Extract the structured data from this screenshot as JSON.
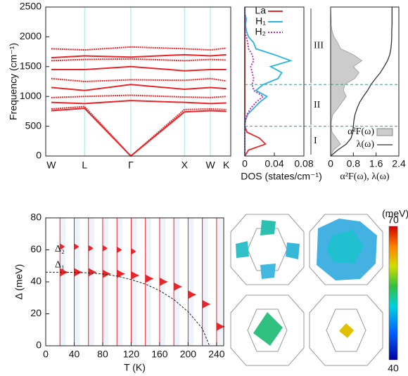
{
  "chart_data": [
    {
      "type": "band",
      "ylabel": "Frequency (cm⁻¹)",
      "categories": [
        "W",
        "L",
        "Γ",
        "X",
        "W",
        "K"
      ],
      "ylim": [
        0,
        2500
      ],
      "yticks": [
        0,
        500,
        1000,
        1500,
        2000,
        2500
      ],
      "color": "#e8262a",
      "bands": [
        [
          760,
          800,
          0,
          740,
          760,
          750
        ],
        [
          790,
          830,
          0,
          780,
          790,
          780
        ],
        [
          900,
          880,
          930,
          900,
          880,
          890
        ],
        [
          980,
          1000,
          1020,
          990,
          980,
          1000
        ],
        [
          1150,
          1100,
          1200,
          1120,
          1150,
          1130
        ],
        [
          1300,
          1250,
          1280,
          1270,
          1300,
          1260
        ],
        [
          1450,
          1450,
          1500,
          1430,
          1450,
          1450
        ],
        [
          1600,
          1620,
          1630,
          1600,
          1620,
          1610
        ],
        [
          1650,
          1680,
          1660,
          1700,
          1680,
          1700
        ],
        [
          1800,
          1780,
          1830,
          1800,
          1780,
          1810
        ]
      ]
    },
    {
      "type": "dos",
      "xlabel": "DOS (states/cm⁻¹)",
      "xlim": [
        0,
        0.08
      ],
      "xticks": [
        0,
        0.04,
        0.08
      ],
      "ylim": [
        0,
        2500
      ],
      "frequency": [
        0,
        100,
        200,
        300,
        400,
        500,
        600,
        700,
        800,
        900,
        1000,
        1100,
        1200,
        1300,
        1400,
        1500,
        1600,
        1700,
        1800,
        1900,
        2000,
        2100,
        2200,
        2300,
        2400,
        2500
      ],
      "series": [
        {
          "name": "La",
          "color": "#e8262a",
          "dash": "solid",
          "values": [
            0,
            0.005,
            0.028,
            0.02,
            0.003,
            0,
            0,
            0,
            0,
            0,
            0,
            0,
            0,
            0,
            0,
            0,
            0,
            0,
            0,
            0,
            0,
            0,
            0,
            0,
            0,
            0
          ]
        },
        {
          "name": "H₁",
          "color": "#27b5e0",
          "dash": "solid",
          "values": [
            0,
            0,
            0,
            0,
            0,
            0,
            0.001,
            0.004,
            0.012,
            0.02,
            0.03,
            0.015,
            0.025,
            0.045,
            0.05,
            0.035,
            0.062,
            0.04,
            0.015,
            0.012,
            0.005,
            0.002,
            0.001,
            0.002,
            0,
            0
          ]
        },
        {
          "name": "H₂",
          "color": "#c020c0",
          "dash": "dotted",
          "values": [
            0,
            0,
            0,
            0,
            0,
            0,
            0.001,
            0.003,
            0.008,
            0.015,
            0.025,
            0.012,
            0.01,
            0.012,
            0.01,
            0.008,
            0.012,
            0.01,
            0.005,
            0.004,
            0.002,
            0,
            0,
            0,
            0,
            0
          ]
        }
      ],
      "regions": [
        {
          "label": "I",
          "range": [
            0,
            500
          ]
        },
        {
          "label": "II",
          "range": [
            500,
            1200
          ]
        },
        {
          "label": "III",
          "range": [
            1200,
            2500
          ]
        }
      ]
    },
    {
      "type": "eliashberg",
      "xlabel": "α²F(ω), λ(ω)",
      "xlim": [
        0,
        2.4
      ],
      "xticks": [
        0,
        0.8,
        1.6,
        2.4
      ],
      "ylim": [
        0,
        2500
      ],
      "frequency": [
        0,
        100,
        200,
        300,
        400,
        500,
        600,
        700,
        800,
        900,
        1000,
        1100,
        1200,
        1300,
        1400,
        1500,
        1600,
        1700,
        1800,
        1900,
        2000,
        2100,
        2200,
        2300,
        2400,
        2500
      ],
      "guides": [
        500,
        1200
      ],
      "series": [
        {
          "name": "α²F(ω)",
          "color": "#cccccc",
          "values": [
            0,
            0.1,
            0.35,
            0.2,
            0.05,
            0.02,
            0.03,
            0.08,
            0.25,
            0.4,
            0.55,
            0.45,
            0.5,
            0.85,
            1.0,
            0.8,
            1.1,
            0.8,
            0.35,
            0.25,
            0.12,
            0.05,
            0.02,
            0.02,
            0.01,
            0
          ]
        },
        {
          "name": "λ(ω)",
          "color": "#333333",
          "values": [
            0,
            0.25,
            0.55,
            0.72,
            0.78,
            0.8,
            0.82,
            0.86,
            0.93,
            1.02,
            1.15,
            1.3,
            1.42,
            1.58,
            1.75,
            1.88,
            2.0,
            2.08,
            2.12,
            2.14,
            2.15,
            2.15,
            2.16,
            2.16,
            2.16,
            2.16
          ]
        }
      ]
    },
    {
      "type": "gap",
      "xlabel": "T (K)",
      "ylabel": "Δ (meV)",
      "xlim": [
        0,
        250
      ],
      "xticks": [
        0,
        40,
        80,
        120,
        160,
        200,
        240
      ],
      "ylim": [
        0,
        80
      ],
      "yticks": [
        0,
        20,
        40,
        60,
        80
      ],
      "color": "#e8262a",
      "temperatures": [
        20,
        40,
        60,
        80,
        100,
        120,
        140,
        160,
        180,
        200,
        220,
        240
      ],
      "series": [
        {
          "name": "Δ₁",
          "values": [
            46,
            46,
            46,
            45,
            45,
            44,
            42,
            40,
            37,
            32,
            26,
            12
          ]
        },
        {
          "name": "Δ₂",
          "values": [
            62,
            62,
            61,
            61,
            60,
            59,
            null,
            null,
            null,
            null,
            null,
            null
          ]
        }
      ],
      "fit": {
        "x": [
          0,
          20,
          40,
          60,
          80,
          100,
          120,
          140,
          160,
          180,
          200,
          220,
          230
        ],
        "y": [
          46,
          46,
          45.9,
          45.6,
          44.9,
          43.6,
          41.4,
          38.6,
          34.5,
          28.9,
          21.3,
          10.8,
          0
        ]
      }
    },
    {
      "type": "colorbar",
      "label": "(meV)",
      "clim": [
        40,
        70
      ],
      "ticks": [
        70,
        40
      ]
    }
  ]
}
